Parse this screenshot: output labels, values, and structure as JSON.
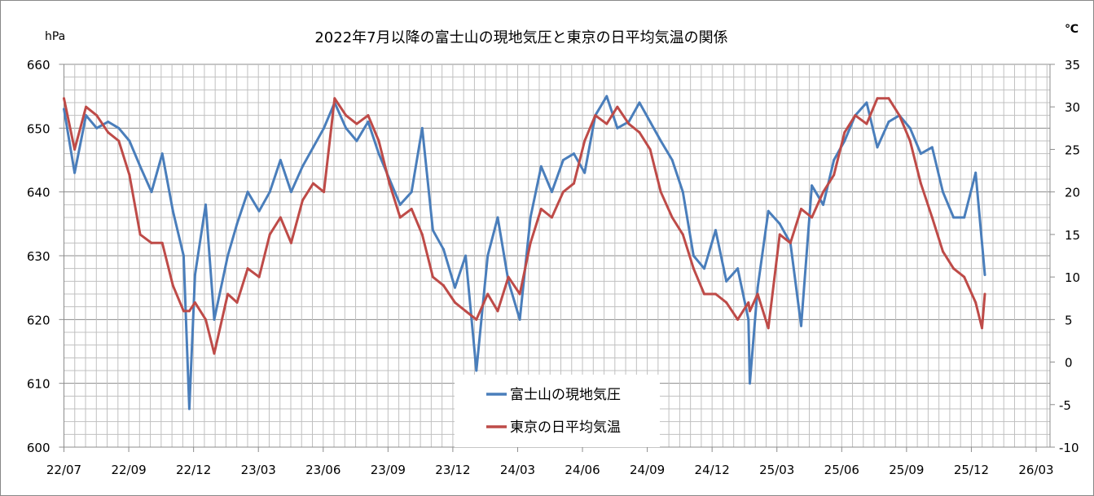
{
  "chart_data": {
    "type": "line",
    "title": "2022年7月以降の富士山の現地気圧と東京の日平均気温の関係",
    "y_left_label": "hPa",
    "y_right_label": "℃",
    "y_left_lim": [
      600,
      660
    ],
    "y_left_ticks": [
      "600",
      "610",
      "620",
      "630",
      "640",
      "650",
      "660"
    ],
    "y_right_lim": [
      -10,
      35
    ],
    "y_right_ticks": [
      "-10",
      "-5",
      "0",
      "5",
      "10",
      "15",
      "20",
      "25",
      "30",
      "35"
    ],
    "x_ticks": [
      {
        "date": "2022-07-01",
        "label": "22/07"
      },
      {
        "date": "2022-09-30",
        "label": "22/09"
      },
      {
        "date": "2022-12-30",
        "label": "22/12"
      },
      {
        "date": "2023-03-31",
        "label": "23/03"
      },
      {
        "date": "2023-06-30",
        "label": "23/06"
      },
      {
        "date": "2023-09-29",
        "label": "23/09"
      },
      {
        "date": "2023-12-29",
        "label": "23/12"
      },
      {
        "date": "2024-03-29",
        "label": "24/03"
      },
      {
        "date": "2024-06-28",
        "label": "24/06"
      },
      {
        "date": "2024-09-27",
        "label": "24/09"
      },
      {
        "date": "2024-12-27",
        "label": "24/12"
      },
      {
        "date": "2025-03-28",
        "label": "25/03"
      },
      {
        "date": "2025-06-27",
        "label": "25/06"
      },
      {
        "date": "2025-09-26",
        "label": "25/09"
      },
      {
        "date": "2025-12-26",
        "label": "25/12"
      },
      {
        "date": "2026-03-27",
        "label": "26/03"
      }
    ],
    "grid": true,
    "legend_position": "bottom-center",
    "x": [
      "2022-07-01",
      "2022-07-16",
      "2022-08-01",
      "2022-08-16",
      "2022-09-01",
      "2022-09-16",
      "2022-10-01",
      "2022-10-16",
      "2022-11-01",
      "2022-11-16",
      "2022-12-01",
      "2022-12-16",
      "2022-12-24",
      "2023-01-01",
      "2023-01-16",
      "2023-01-28",
      "2023-02-16",
      "2023-03-01",
      "2023-03-16",
      "2023-04-01",
      "2023-04-16",
      "2023-05-01",
      "2023-05-16",
      "2023-06-01",
      "2023-06-16",
      "2023-07-01",
      "2023-07-16",
      "2023-08-01",
      "2023-08-16",
      "2023-09-01",
      "2023-09-16",
      "2023-10-01",
      "2023-10-16",
      "2023-11-01",
      "2023-11-16",
      "2023-12-01",
      "2023-12-16",
      "2024-01-01",
      "2024-01-16",
      "2024-01-31",
      "2024-02-16",
      "2024-03-01",
      "2024-03-16",
      "2024-04-01",
      "2024-04-16",
      "2024-05-01",
      "2024-05-16",
      "2024-06-01",
      "2024-06-16",
      "2024-07-01",
      "2024-07-16",
      "2024-08-01",
      "2024-08-16",
      "2024-09-01",
      "2024-09-16",
      "2024-10-01",
      "2024-10-16",
      "2024-11-01",
      "2024-11-16",
      "2024-12-01",
      "2024-12-16",
      "2025-01-01",
      "2025-01-16",
      "2025-02-01",
      "2025-02-16",
      "2025-02-18",
      "2025-03-01",
      "2025-03-16",
      "2025-04-01",
      "2025-04-16",
      "2025-05-01",
      "2025-05-16",
      "2025-06-01",
      "2025-06-16",
      "2025-07-01",
      "2025-07-16",
      "2025-08-01",
      "2025-08-16",
      "2025-09-01",
      "2025-09-16",
      "2025-10-01",
      "2025-10-16",
      "2025-11-01",
      "2025-11-16",
      "2025-12-01",
      "2025-12-16",
      "2026-01-01",
      "2026-01-10",
      "2026-01-14"
    ],
    "series": [
      {
        "name": "富士山の現地気圧",
        "axis": "left",
        "color": "#4a7ebb",
        "values": [
          653,
          643,
          652,
          650,
          651,
          650,
          648,
          644,
          640,
          646,
          637,
          630,
          606,
          627,
          638,
          620,
          630,
          635,
          640,
          637,
          640,
          645,
          640,
          644,
          647,
          650,
          654,
          650,
          648,
          651,
          646,
          642,
          638,
          640,
          650,
          634,
          631,
          625,
          630,
          612,
          630,
          636,
          626,
          620,
          636,
          644,
          640,
          645,
          646,
          643,
          652,
          655,
          650,
          651,
          654,
          651,
          648,
          645,
          640,
          630,
          628,
          634,
          626,
          628,
          620,
          610,
          625,
          637,
          635,
          632,
          619,
          641,
          638,
          645,
          648,
          652,
          654,
          647,
          651,
          652,
          650,
          646,
          647,
          640,
          636,
          636,
          643,
          632,
          627
        ]
      },
      {
        "name": "東京の日平均気温",
        "axis": "right",
        "color": "#be4b48",
        "values": [
          31,
          25,
          30,
          29,
          27,
          26,
          22,
          15,
          14,
          14,
          9,
          6,
          6,
          7,
          5,
          1,
          8,
          7,
          11,
          10,
          15,
          17,
          14,
          19,
          21,
          20,
          31,
          29,
          28,
          29,
          26,
          21,
          17,
          18,
          15,
          10,
          9,
          7,
          6,
          5,
          8,
          6,
          10,
          8,
          14,
          18,
          17,
          20,
          21,
          26,
          29,
          28,
          30,
          28,
          27,
          25,
          20,
          17,
          15,
          11,
          8,
          8,
          7,
          5,
          7,
          6,
          8,
          4,
          15,
          14,
          18,
          17,
          20,
          22,
          27,
          29,
          28,
          31,
          31,
          29,
          26,
          21,
          17,
          13,
          11,
          10,
          7,
          4,
          8
        ]
      }
    ]
  }
}
